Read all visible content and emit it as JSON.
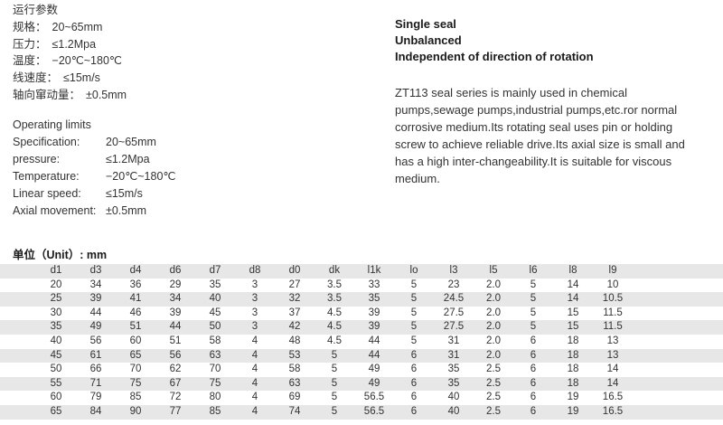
{
  "operating_params_cn": {
    "title": "运行参数",
    "rows": [
      {
        "label": "规格：",
        "value": "20~65mm"
      },
      {
        "label": "压力：",
        "value": "≤1.2Mpa"
      },
      {
        "label": "温度：",
        "value": "−20℃~180℃"
      },
      {
        "label": "线速度：",
        "value": "≤15m/s"
      },
      {
        "label": "轴向窜动量：",
        "value": "±0.5mm"
      }
    ]
  },
  "operating_limits_en": {
    "title": "Operating limits",
    "rows": [
      {
        "label": "Specification:",
        "value": "20~65mm"
      },
      {
        "label": "pressure:",
        "value": "≤1.2Mpa"
      },
      {
        "label": "Temperature:",
        "value": "−20℃~180℃"
      },
      {
        "label": "Linear speed:",
        "value": "≤15m/s"
      },
      {
        "label": "Axial movement:",
        "value": "±0.5mm"
      }
    ]
  },
  "features": [
    "Single seal",
    "Unbalanced",
    "Independent of direction of rotation"
  ],
  "description": "ZT113 seal series is mainly used in chemical pumps,sewage pumps,industrial pumps,etc.ror normal corrosive medium.Its rotating seal uses pin or holding screw to achieve reliable drive.Its axial size is small and has a high inter-changeability.It is suitable for viscous medium.",
  "table": {
    "unit_label": "单位（Unit）: mm",
    "columns": [
      "d1",
      "d3",
      "d4",
      "d6",
      "d7",
      "d8",
      "d0",
      "dk",
      "l1k",
      "lo",
      "l3",
      "l5",
      "l6",
      "l8",
      "l9"
    ],
    "rows": [
      [
        "20",
        "34",
        "36",
        "29",
        "35",
        "3",
        "27",
        "3.5",
        "33",
        "5",
        "23",
        "2.0",
        "5",
        "14",
        "10"
      ],
      [
        "25",
        "39",
        "41",
        "34",
        "40",
        "3",
        "32",
        "3.5",
        "35",
        "5",
        "24.5",
        "2.0",
        "5",
        "14",
        "10.5"
      ],
      [
        "30",
        "44",
        "46",
        "39",
        "45",
        "3",
        "37",
        "4.5",
        "39",
        "5",
        "27.5",
        "2.0",
        "5",
        "15",
        "11.5"
      ],
      [
        "35",
        "49",
        "51",
        "44",
        "50",
        "3",
        "42",
        "4.5",
        "39",
        "5",
        "27.5",
        "2.0",
        "5",
        "15",
        "11.5"
      ],
      [
        "40",
        "56",
        "60",
        "51",
        "58",
        "4",
        "48",
        "4.5",
        "44",
        "5",
        "31",
        "2.0",
        "6",
        "18",
        "13"
      ],
      [
        "45",
        "61",
        "65",
        "56",
        "63",
        "4",
        "53",
        "5",
        "44",
        "6",
        "31",
        "2.0",
        "6",
        "18",
        "13"
      ],
      [
        "50",
        "66",
        "70",
        "62",
        "70",
        "4",
        "58",
        "5",
        "49",
        "6",
        "35",
        "2.5",
        "6",
        "18",
        "14"
      ],
      [
        "55",
        "71",
        "75",
        "67",
        "75",
        "4",
        "63",
        "5",
        "49",
        "6",
        "35",
        "2.5",
        "6",
        "18",
        "14"
      ],
      [
        "60",
        "79",
        "85",
        "72",
        "80",
        "4",
        "69",
        "5",
        "56.5",
        "6",
        "40",
        "2.5",
        "6",
        "19",
        "16.5"
      ],
      [
        "65",
        "84",
        "90",
        "77",
        "85",
        "4",
        "74",
        "5",
        "56.5",
        "6",
        "40",
        "2.5",
        "6",
        "19",
        "16.5"
      ]
    ]
  },
  "colors": {
    "stripe": "#e7e7e7",
    "text": "#333333",
    "bold_text": "#1a1a1a"
  }
}
